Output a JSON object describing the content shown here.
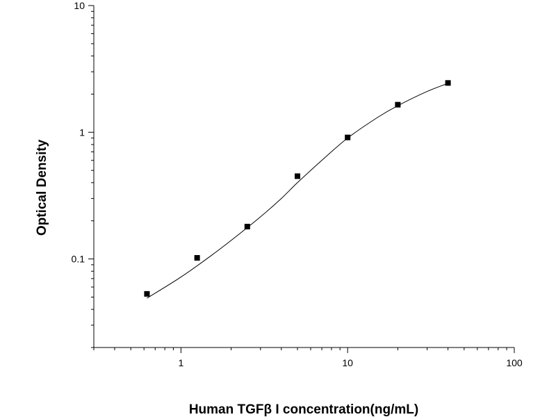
{
  "chart_data": {
    "type": "scatter",
    "title": "",
    "xlabel": "Human TGFβ I concentration(ng/mL)",
    "ylabel": "Optical Density",
    "xscale": "log",
    "yscale": "log",
    "xlim": [
      0.3,
      100
    ],
    "ylim": [
      0.02,
      10
    ],
    "x_ticks": [
      {
        "value": 1,
        "label": "1"
      },
      {
        "value": 10,
        "label": "10"
      },
      {
        "value": 100,
        "label": "100"
      }
    ],
    "y_ticks": [
      {
        "value": 0.1,
        "label": "0.1"
      },
      {
        "value": 1,
        "label": "1"
      },
      {
        "value": 10,
        "label": "10"
      }
    ],
    "grid": false,
    "legend": "none",
    "marker_color": "#000000",
    "line_color": "#000000",
    "series": [
      {
        "name": "",
        "marker": "square",
        "points": [
          {
            "x": 0.625,
            "y": 0.053
          },
          {
            "x": 1.25,
            "y": 0.102
          },
          {
            "x": 2.5,
            "y": 0.18
          },
          {
            "x": 5,
            "y": 0.45
          },
          {
            "x": 10,
            "y": 0.91
          },
          {
            "x": 20,
            "y": 1.65
          },
          {
            "x": 40,
            "y": 2.45
          }
        ]
      }
    ],
    "fit_curve": {
      "type": "four-parameter logistic",
      "points": [
        {
          "x": 0.625,
          "y": 0.049
        },
        {
          "x": 1,
          "y": 0.072
        },
        {
          "x": 1.5,
          "y": 0.105
        },
        {
          "x": 2,
          "y": 0.14
        },
        {
          "x": 3,
          "y": 0.215
        },
        {
          "x": 4,
          "y": 0.3
        },
        {
          "x": 5,
          "y": 0.4
        },
        {
          "x": 7,
          "y": 0.6
        },
        {
          "x": 10,
          "y": 0.9
        },
        {
          "x": 15,
          "y": 1.3
        },
        {
          "x": 20,
          "y": 1.62
        },
        {
          "x": 30,
          "y": 2.1
        },
        {
          "x": 40,
          "y": 2.43
        }
      ]
    }
  }
}
